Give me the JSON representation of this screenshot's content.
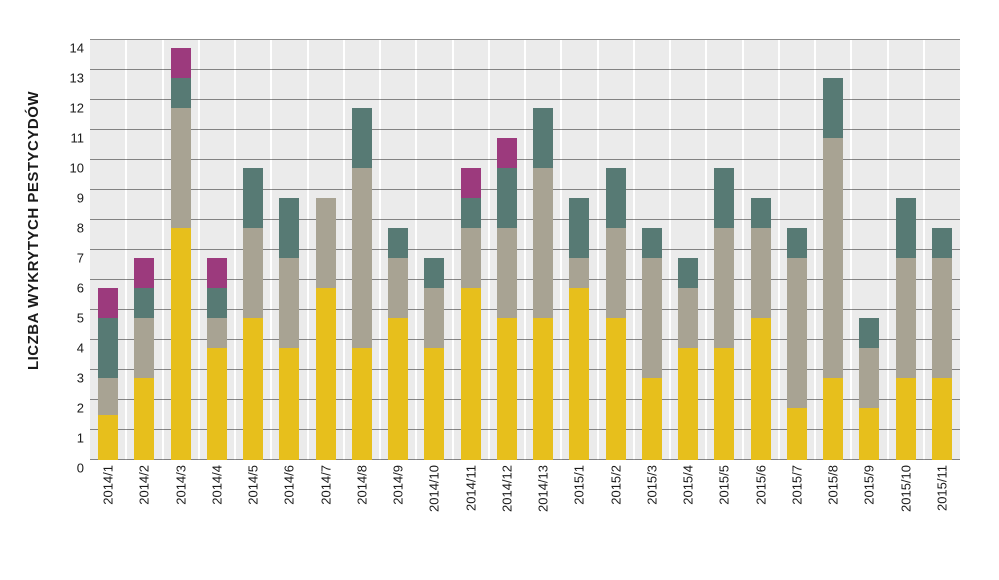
{
  "chart": {
    "type": "stacked-bar",
    "ylabel": "LICZBA WYKRYTYCH PESTYCYDÓW",
    "ylim": [
      0,
      14
    ],
    "ytick_step": 1,
    "background_color": "#ffffff",
    "plot_stripe_color": "#ebebeb",
    "plot_gap_color": "#ffffff",
    "gridline_color": "#1a1a1a",
    "axis_text_color": "#1a1a1a",
    "ylabel_fontsize": 15,
    "tick_fontsize": 13,
    "bar_width_ratio": 0.55,
    "colors": {
      "yellow": "#e7bf1c",
      "grey": "#a8a393",
      "teal": "#577a74",
      "magenta": "#9c3a7d"
    },
    "categories": [
      "2014/1",
      "2014/2",
      "2014/3",
      "2014/4",
      "2014/5",
      "2014/6",
      "2014/7",
      "2014/8",
      "2014/9",
      "2014/10",
      "2014/11",
      "2014/12",
      "2014/13",
      "2015/1",
      "2015/2",
      "2015/3",
      "2015/4",
      "2015/5",
      "2015/6",
      "2015/7",
      "2015/8",
      "2015/9",
      "2015/10",
      "2015/11"
    ],
    "series": [
      {
        "key": "yellow",
        "values": [
          1.5,
          2.75,
          7.75,
          3.75,
          4.75,
          3.75,
          5.75,
          3.75,
          4.75,
          3.75,
          5.75,
          4.75,
          4.75,
          5.75,
          4.75,
          2.75,
          3.75,
          3.75,
          4.75,
          1.75,
          2.75,
          1.75,
          2.75,
          2.75
        ]
      },
      {
        "key": "grey",
        "values": [
          1.25,
          2,
          4,
          1,
          3,
          3,
          3,
          6,
          2,
          2,
          2,
          3,
          5,
          1,
          3,
          4,
          2,
          4,
          3,
          5,
          8,
          2,
          4,
          4
        ]
      },
      {
        "key": "teal",
        "values": [
          2,
          1,
          1,
          1,
          2,
          2,
          0,
          2,
          1,
          1,
          1,
          2,
          2,
          2,
          2,
          1,
          1,
          2,
          1,
          1,
          2,
          1,
          2,
          1
        ]
      },
      {
        "key": "magenta",
        "values": [
          1,
          1,
          1,
          1,
          0,
          0,
          0,
          0,
          0,
          0,
          1,
          1,
          0,
          0,
          0,
          0,
          0,
          0,
          0,
          0,
          0,
          0,
          0,
          0
        ]
      }
    ]
  }
}
